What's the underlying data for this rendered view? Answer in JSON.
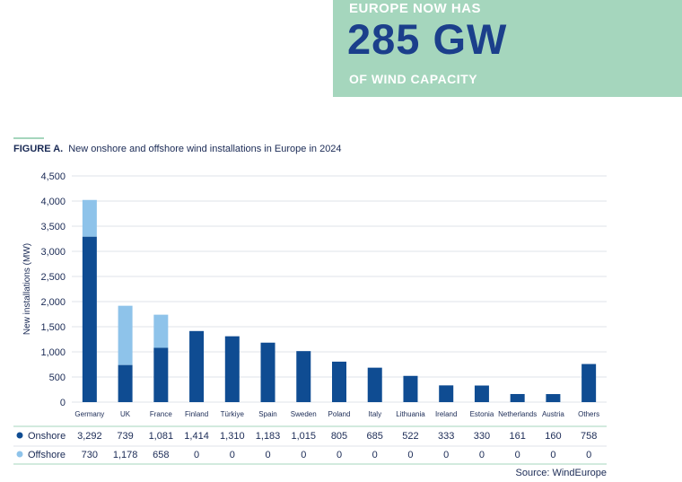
{
  "banner": {
    "line1": "EUROPE NOW HAS",
    "headline": "285 GW",
    "line2": "OF WIND CAPACITY",
    "bg_color": "#a5d6bd",
    "headline_color": "#1b3f8b"
  },
  "figure": {
    "label": "FIGURE A.",
    "title": "New onshore and offshore wind installations in Europe in 2024",
    "source": "Source: WindEurope"
  },
  "chart_data": {
    "type": "bar",
    "stacked": true,
    "ylabel": "New installations (MW)",
    "xlabel": "",
    "ylim": [
      0,
      4500
    ],
    "yticks": [
      "0",
      "500",
      "1,000",
      "1,500",
      "2,000",
      "2,500",
      "3,000",
      "3,500",
      "4,000",
      "4,500"
    ],
    "grid": true,
    "categories": [
      "Germany",
      "UK",
      "France",
      "Finland",
      "Türkiye",
      "Spain",
      "Sweden",
      "Poland",
      "Italy",
      "Lithuania",
      "Ireland",
      "Estonia",
      "Netherlands",
      "Austria",
      "Others"
    ],
    "series": [
      {
        "name": "Onshore",
        "color": "#0f4c92",
        "values": [
          3292,
          739,
          1081,
          1414,
          1310,
          1183,
          1015,
          805,
          685,
          522,
          333,
          330,
          161,
          160,
          758
        ],
        "labels": [
          "3,292",
          "739",
          "1,081",
          "1,414",
          "1,310",
          "1,183",
          "1,015",
          "805",
          "685",
          "522",
          "333",
          "330",
          "161",
          "160",
          "758"
        ]
      },
      {
        "name": "Offshore",
        "color": "#8ec3ea",
        "values": [
          730,
          1178,
          658,
          0,
          0,
          0,
          0,
          0,
          0,
          0,
          0,
          0,
          0,
          0,
          0
        ],
        "labels": [
          "730",
          "1,178",
          "658",
          "0",
          "0",
          "0",
          "0",
          "0",
          "0",
          "0",
          "0",
          "0",
          "0",
          "0",
          "0"
        ]
      }
    ],
    "legend": "table-below"
  }
}
